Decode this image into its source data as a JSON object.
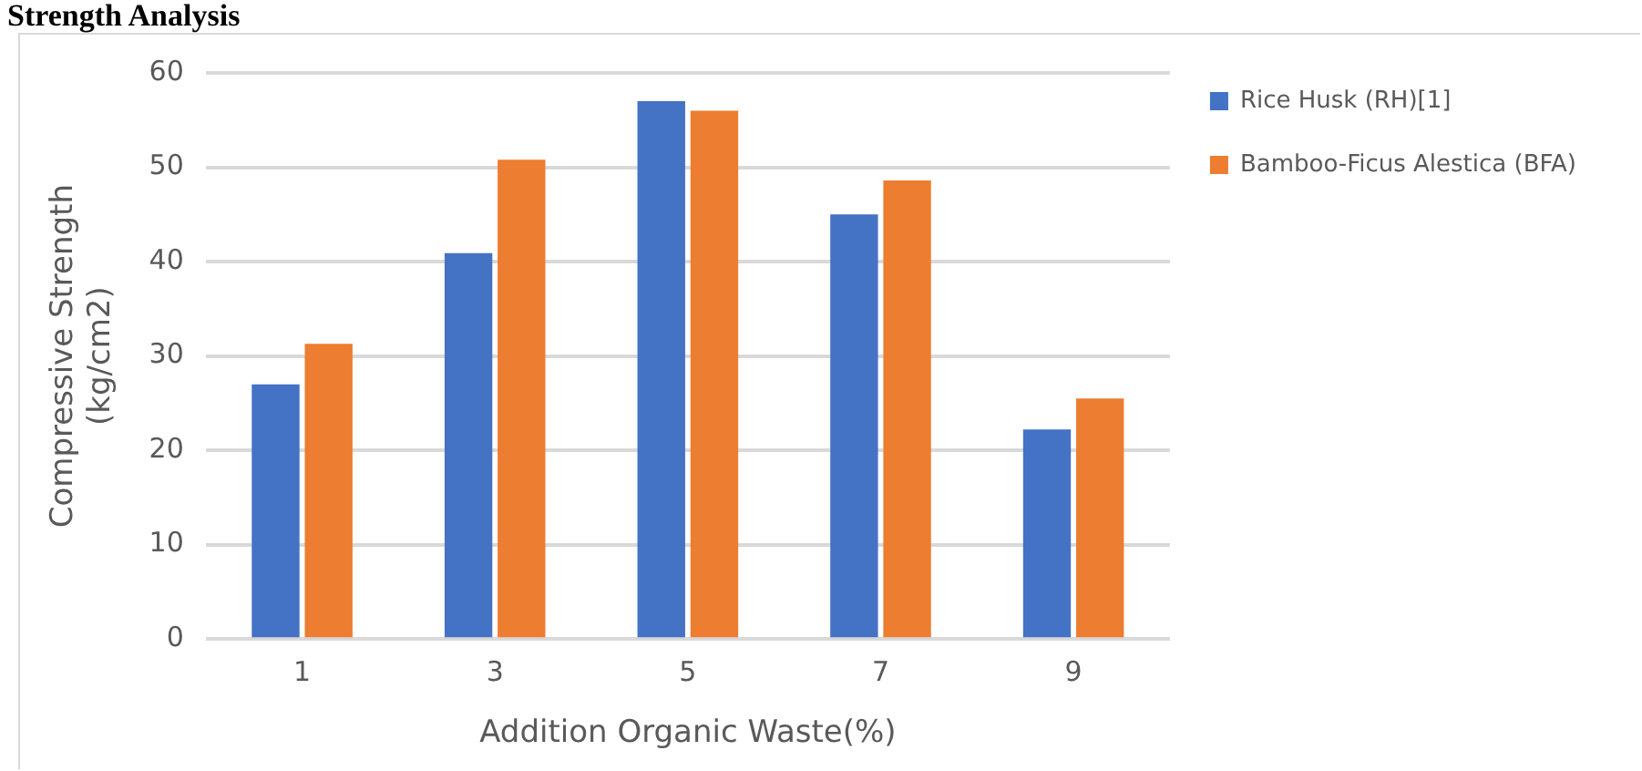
{
  "chart_data": {
    "type": "bar",
    "title": "Strength Analysis",
    "xlabel": "Addition Organic Waste(%)",
    "ylabel": "Compressive Strength (kg/cm2)",
    "categories": [
      "1",
      "3",
      "5",
      "7",
      "9"
    ],
    "series": [
      {
        "name": "Rice Husk (RH)[1]",
        "color": "#4472c4",
        "values": [
          27,
          40.9,
          57,
          45,
          22.2
        ]
      },
      {
        "name": "Bamboo-Ficus Alestica (BFA)",
        "color": "#ed7d31",
        "values": [
          31.3,
          50.8,
          56,
          48.6,
          25.5
        ]
      }
    ],
    "ylim": [
      0,
      60
    ],
    "yticks": [
      0,
      10,
      20,
      30,
      40,
      50,
      60
    ],
    "grid": "y",
    "legend": "right"
  }
}
